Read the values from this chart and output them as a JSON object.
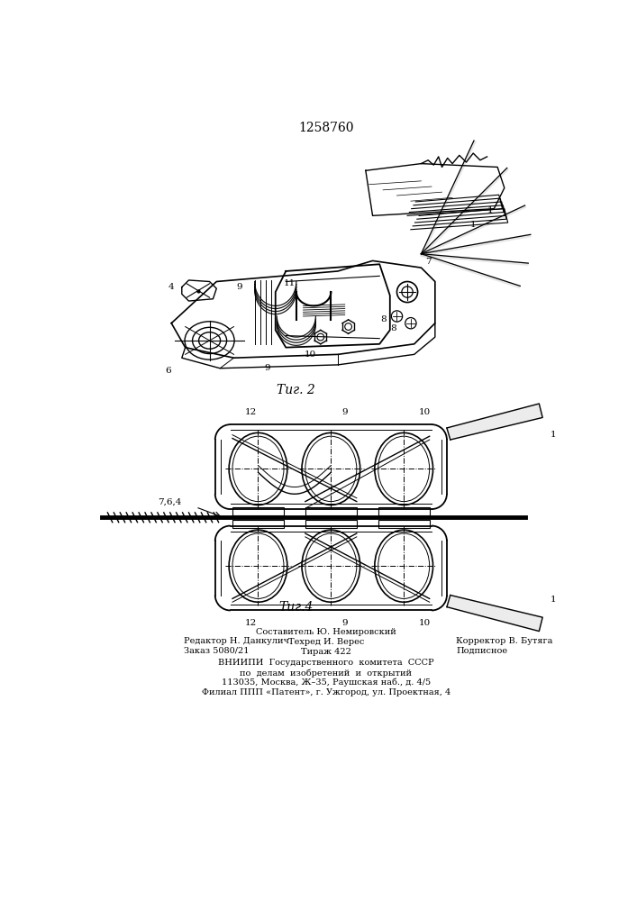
{
  "patent_number": "1258760",
  "fig2_label": "Τиг. 2",
  "fig4_label": "Τиг.4",
  "footer_left_line1": "Редактор Н. Данкулич",
  "footer_left_line2": "Заказ 5080/21",
  "footer_center_line1": "Составитель Ю. Немировский",
  "footer_center_line2": "Техред И. Верес",
  "footer_center_line3": "Тираж 422",
  "footer_right_line1": "Корректор В. Бутяга",
  "footer_right_line2": "Подписное",
  "footer_bottom1": "ВНИИПИ  Государственного  комитета  СССР",
  "footer_bottom2": "по  делам  изобретений  и  открытий",
  "footer_bottom3": "113035, Москва, Ж–35, Раушская наб., д. 4/5",
  "footer_bottom4": "Филиал ППП «Патент», г. Ужгород, ул. Проектная, 4",
  "bg_color": "#ffffff",
  "line_color": "#000000"
}
